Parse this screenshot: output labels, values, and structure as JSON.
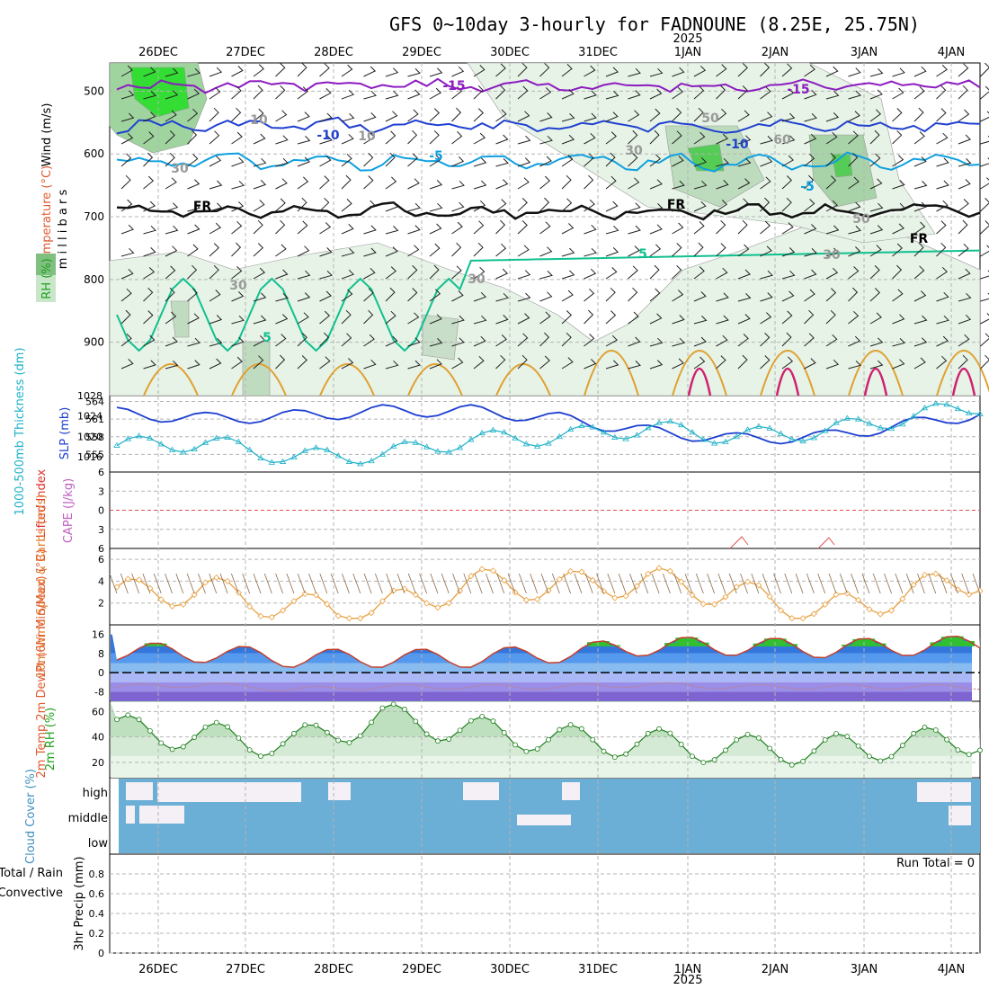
{
  "title": "GFS 0~10day 3-hourly for FADNOUNE (8.25E, 25.75N)",
  "year_label": "2025",
  "date_labels": [
    "26DEC",
    "27DEC",
    "28DEC",
    "29DEC",
    "30DEC",
    "31DEC",
    "1JAN",
    "2JAN",
    "3JAN",
    "4JAN"
  ],
  "run_total": "Run Total = 0",
  "panels": {
    "upper": {
      "ylabel_wind": "Wind (m/s)",
      "ylabel_temp": "Temperature (°C)",
      "ylabel_mb": "m i l l i b a r s",
      "ylabel_rh": "RH (%)",
      "ticks": [
        "500",
        "600",
        "700",
        "800",
        "900"
      ],
      "contour_labels": [
        "-15",
        "-10",
        "-5",
        "-5",
        "FR",
        "5",
        "-10",
        "-5",
        "-15",
        "5",
        "FR",
        "FR",
        "10",
        "30",
        "50",
        "10",
        "30",
        "60",
        "30",
        "30",
        "50",
        "30"
      ]
    },
    "pressure": {
      "ylabel_thick": "1000-500mb Thickness (dm)",
      "ylabel_slp": "SLP (mb)",
      "left_ticks": [
        "564",
        "561",
        "558",
        "555"
      ],
      "right_ticks": [
        "1028",
        "1024",
        "1020",
        "1016"
      ]
    },
    "stability": {
      "ylabel_li": "Lifted Index",
      "ylabel_cape": "CAPE (J/kg)",
      "ticks": [
        "6",
        "3",
        "0",
        "3",
        "6"
      ]
    },
    "wind10m": {
      "ylabel": "10m Wind Speed & Barbs (m/s)",
      "ticks": [
        "6",
        "4",
        "2"
      ]
    },
    "temp2m": {
      "ylabel": "2m Temp 2m DewPt (6hr Min/Max) (°C)",
      "ticks": [
        "16",
        "8",
        "0",
        "-8"
      ]
    },
    "rh2m": {
      "ylabel": "2m RH (%)",
      "ticks": [
        "60",
        "40",
        "20"
      ]
    },
    "cloud": {
      "ylabel": "Cloud Cover (%)",
      "levels": [
        "high",
        "middle",
        "low"
      ]
    },
    "precip": {
      "ylabel_total": "Total / Rain",
      "ylabel_conv": "Convective",
      "ylabel_precip": "3hr Precip (mm)",
      "ticks": [
        "0.8",
        "0.6",
        "0.4",
        "0.2",
        "0"
      ]
    }
  },
  "colors": {
    "grid": "#b4b4b4",
    "thickness": "#20b2c8",
    "slp": "#1e3fd0",
    "wind": "#e8a040",
    "temp_line": "#c04030",
    "dew_line": "#c08080",
    "rh_line": "#208020",
    "cloud": "#6baed6",
    "cloud_clear": "#f4f0f6",
    "iso_m15": "#8c1cc0",
    "iso_m10": "#2040d0",
    "iso_m5": "#10a0e0",
    "iso_5": "#10c090",
    "iso_warm": "#e0a030",
    "iso_hot": "#d02070"
  },
  "chart_data": [
    {
      "type": "line",
      "title": "1000-500mb Thickness & SLP",
      "x": [
        "26DEC",
        "27DEC",
        "28DEC",
        "29DEC",
        "30DEC",
        "31DEC",
        "1JAN",
        "2JAN",
        "3JAN",
        "4JAN"
      ],
      "series": [
        {
          "name": "1000-500mb Thickness (dm)",
          "values": [
            556.5,
            557.0,
            554.5,
            555.0,
            557.5,
            558.0,
            559.5,
            558.0,
            559.0,
            561.5
          ]
        },
        {
          "name": "SLP (mb)",
          "values": [
            1024.5,
            1023.5,
            1024.0,
            1025.0,
            1025.0,
            1023.5,
            1021.0,
            1019.5,
            1020.0,
            1022.5
          ]
        }
      ]
    },
    {
      "type": "line",
      "title": "10m Wind Speed",
      "x": [
        "26DEC",
        "27DEC",
        "28DEC",
        "29DEC",
        "30DEC",
        "31DEC",
        "1JAN",
        "2JAN",
        "3JAN",
        "4JAN"
      ],
      "series": [
        {
          "name": "10m Wind Speed (m/s)",
          "values": [
            2.8,
            3.2,
            1.5,
            1.5,
            3.8,
            3.5,
            4.0,
            2.8,
            1.2,
            3.0
          ]
        }
      ]
    },
    {
      "type": "area",
      "title": "2m Temp",
      "x": [
        "26DEC",
        "27DEC",
        "28DEC",
        "29DEC",
        "30DEC",
        "31DEC",
        "1JAN",
        "2JAN",
        "3JAN",
        "4JAN"
      ],
      "series": [
        {
          "name": "2m Temp (°C)",
          "values": [
            9,
            8,
            6,
            6,
            6,
            8,
            11,
            11,
            10,
            11
          ]
        },
        {
          "name": "2m DewPt (°C)",
          "values": [
            -6,
            -5,
            -7,
            -6,
            -6,
            -6,
            -5,
            -6,
            -6,
            -6
          ]
        }
      ]
    },
    {
      "type": "area",
      "title": "2m RH",
      "x": [
        "26DEC",
        "27DEC",
        "28DEC",
        "29DEC",
        "30DEC",
        "31DEC",
        "1JAN",
        "2JAN",
        "3JAN",
        "4JAN"
      ],
      "series": [
        {
          "name": "2m RH (%)",
          "values": [
            46,
            40,
            35,
            55,
            45,
            38,
            35,
            30,
            30,
            35
          ]
        }
      ]
    }
  ]
}
